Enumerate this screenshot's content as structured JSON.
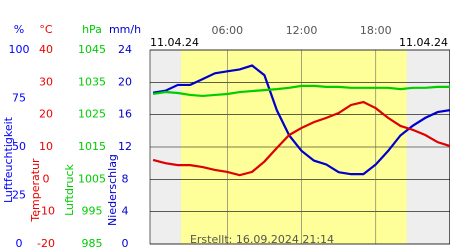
{
  "chart_data": {
    "type": "line",
    "date_left": "11.04.24",
    "date_right": "11.04.24",
    "footer": "Erstellt: 16.09.2024 21:14",
    "xlim": [
      -0.25,
      24
    ],
    "xticks": [
      {
        "value": 6,
        "label": "06:00"
      },
      {
        "value": 12,
        "label": "12:00"
      },
      {
        "value": 18,
        "label": "18:00"
      }
    ],
    "daylight": [
      2.25,
      20.5
    ],
    "axes": [
      {
        "title": "Luftfeuchtigkeit",
        "unit": "%",
        "color": "#0000ff",
        "lim": [
          0,
          100
        ],
        "ticks": [
          0,
          25,
          50,
          75,
          100
        ]
      },
      {
        "title": "Temperatur",
        "unit": "°C",
        "color": "#ee0000",
        "lim": [
          -20,
          40
        ],
        "ticks": [
          -20,
          -10,
          0,
          10,
          20,
          30,
          40
        ]
      },
      {
        "title": "Luftdruck",
        "unit": "hPa",
        "color": "#00cc00",
        "lim": [
          985,
          1045
        ],
        "ticks": [
          985,
          995,
          1005,
          1015,
          1025,
          1035,
          1045
        ]
      },
      {
        "title": "Niederschlag",
        "unit": "mm/h",
        "color": "#0000cc",
        "lim": [
          0,
          24
        ],
        "ticks": [
          0,
          4,
          8,
          12,
          16,
          20,
          24
        ]
      }
    ],
    "x": [
      0,
      1,
      2,
      3,
      4,
      5,
      6,
      7,
      8,
      9,
      10,
      11,
      12,
      13,
      14,
      15,
      16,
      17,
      18,
      19,
      20,
      21,
      22,
      23,
      24
    ],
    "series": [
      {
        "axis": 0,
        "color": "#0000cc",
        "values": [
          78,
          79,
          82,
          82,
          85,
          88,
          89,
          90,
          92,
          87,
          69,
          56,
          48,
          43,
          41,
          37,
          36,
          36,
          41,
          48,
          56,
          61,
          65,
          68,
          69
        ]
      },
      {
        "axis": 1,
        "color": "#dd0000",
        "values": [
          6.0,
          5.0,
          4.4,
          4.4,
          3.8,
          2.9,
          2.3,
          1.3,
          2.3,
          5.5,
          9.7,
          13.7,
          15.9,
          17.7,
          19.0,
          20.5,
          23.0,
          23.9,
          22.0,
          19.0,
          16.5,
          15.3,
          13.7,
          11.5,
          10.3
        ]
      },
      {
        "axis": 2,
        "color": "#00cc00",
        "values": [
          1031.4,
          1032,
          1031.7,
          1031.1,
          1030.8,
          1031.1,
          1031.4,
          1032,
          1032.3,
          1032.6,
          1032.9,
          1033.3,
          1033.9,
          1033.9,
          1033.6,
          1033.6,
          1033.3,
          1033.3,
          1033.3,
          1033.3,
          1032.9,
          1033.3,
          1033.3,
          1033.6,
          1033.6
        ]
      }
    ]
  }
}
